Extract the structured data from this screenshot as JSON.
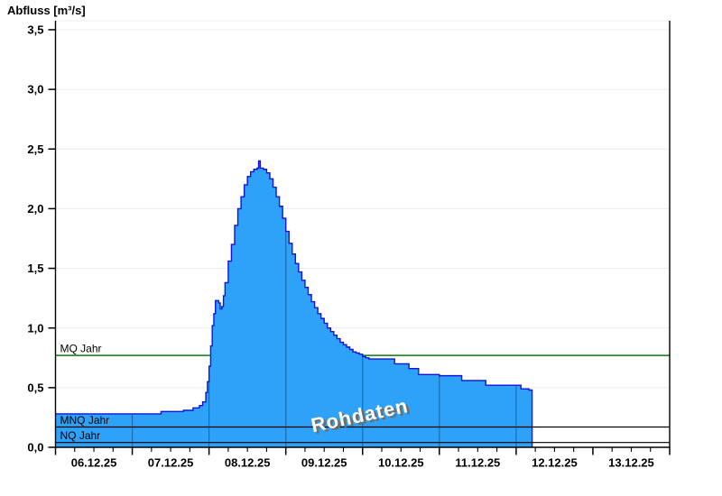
{
  "title": "Abfluss [m³/s]",
  "watermark": "Rohdaten",
  "chart_data": {
    "type": "area",
    "title": "Abfluss [m³/s]",
    "ylabel": "Abfluss [m³/s]",
    "xlabel": "",
    "grid": "horizontal-only",
    "ylim": [
      0,
      3.5
    ],
    "y_tick_step": 0.5,
    "y_tick_labels": [
      "0,0",
      "0,5",
      "1,0",
      "1,5",
      "2,0",
      "2,5",
      "3,0",
      "3,5"
    ],
    "x_tick_labels": [
      "06.12.25",
      "07.12.25",
      "08.12.25",
      "09.12.25",
      "10.12.25",
      "11.12.25",
      "12.12.25",
      "13.12.25"
    ],
    "x_total_hours": 192,
    "x_hours_per_day": 24,
    "x_minor_tick_hours": 6,
    "series": [
      {
        "name": "Rohdaten",
        "unit": "m³/s",
        "step": true,
        "x_unit": "hours since 06.12.25 00:00",
        "breakpoints": [
          [
            0,
            0.28
          ],
          [
            30,
            0.28
          ],
          [
            33,
            0.3
          ],
          [
            40,
            0.31
          ],
          [
            43,
            0.33
          ],
          [
            45,
            0.35
          ],
          [
            46,
            0.38
          ],
          [
            47,
            0.46
          ],
          [
            47.5,
            0.55
          ],
          [
            48,
            0.68
          ],
          [
            48.5,
            0.85
          ],
          [
            49,
            1.02
          ],
          [
            49.5,
            1.12
          ],
          [
            50,
            1.23
          ],
          [
            51,
            1.21
          ],
          [
            51.5,
            1.16
          ],
          [
            52,
            1.18
          ],
          [
            52.5,
            1.27
          ],
          [
            53,
            1.38
          ],
          [
            54,
            1.56
          ],
          [
            55,
            1.7
          ],
          [
            56,
            1.86
          ],
          [
            57,
            2.0
          ],
          [
            58,
            2.1
          ],
          [
            59,
            2.2
          ],
          [
            60,
            2.27
          ],
          [
            61,
            2.31
          ],
          [
            62,
            2.33
          ],
          [
            63,
            2.34
          ],
          [
            63.5,
            2.4
          ],
          [
            64,
            2.34
          ],
          [
            65,
            2.33
          ],
          [
            66,
            2.3
          ],
          [
            67,
            2.25
          ],
          [
            68,
            2.18
          ],
          [
            69,
            2.1
          ],
          [
            70,
            2.02
          ],
          [
            71,
            1.92
          ],
          [
            72,
            1.81
          ],
          [
            73,
            1.71
          ],
          [
            74,
            1.62
          ],
          [
            75,
            1.54
          ],
          [
            76,
            1.47
          ],
          [
            77,
            1.4
          ],
          [
            78,
            1.34
          ],
          [
            79,
            1.28
          ],
          [
            80,
            1.22
          ],
          [
            81,
            1.17
          ],
          [
            82,
            1.12
          ],
          [
            83,
            1.08
          ],
          [
            84,
            1.04
          ],
          [
            85,
            1.0
          ],
          [
            86,
            0.97
          ],
          [
            87,
            0.94
          ],
          [
            88,
            0.91
          ],
          [
            89,
            0.88
          ],
          [
            90,
            0.86
          ],
          [
            91,
            0.84
          ],
          [
            92,
            0.82
          ],
          [
            93,
            0.8
          ],
          [
            94,
            0.79
          ],
          [
            95,
            0.78
          ],
          [
            96,
            0.76
          ],
          [
            97,
            0.75
          ],
          [
            98,
            0.74
          ],
          [
            105,
            0.74
          ],
          [
            106,
            0.7
          ],
          [
            110,
            0.7
          ],
          [
            110.5,
            0.66
          ],
          [
            113,
            0.66
          ],
          [
            113.5,
            0.61
          ],
          [
            120,
            0.6
          ],
          [
            127,
            0.56
          ],
          [
            134.5,
            0.52
          ],
          [
            145.5,
            0.49
          ],
          [
            148,
            0.48
          ],
          [
            149,
            0.48
          ]
        ]
      }
    ],
    "reference_lines": [
      {
        "label": "MQ Jahr",
        "value": 0.77,
        "color": "#0a7a0a",
        "above_area": false
      },
      {
        "label": "MNQ Jahr",
        "value": 0.17,
        "color": "#000000",
        "above_area": true
      },
      {
        "label": "NQ Jahr",
        "value": 0.04,
        "color": "#000000",
        "above_area": true
      }
    ],
    "colors": {
      "area_fill": "#2ea2f8",
      "area_edge": "#1013dc",
      "day_line_on_area": "#1a6ca8",
      "gridline": "#ececec",
      "axis": "#000000",
      "tick_label": "#000000",
      "watermark_text": "#ffffff",
      "watermark_shadow": "#6e6e6e"
    }
  }
}
